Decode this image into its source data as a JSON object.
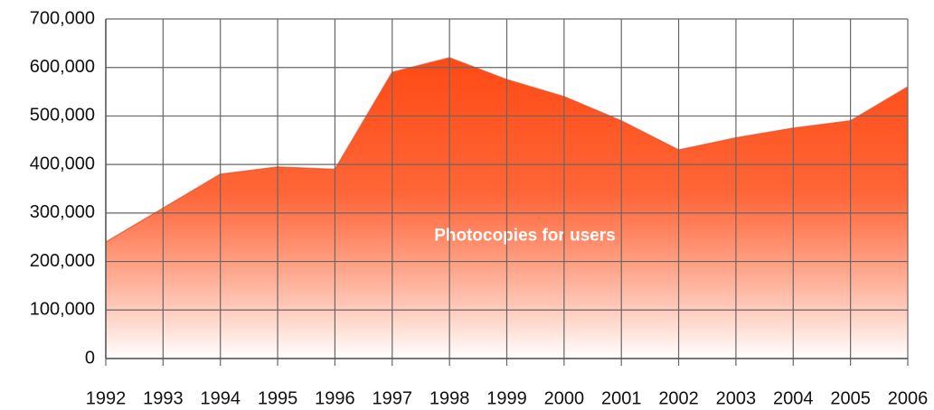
{
  "chart_data": {
    "type": "area",
    "categories": [
      "1992",
      "1993",
      "1994",
      "1995",
      "1996",
      "1997",
      "1998",
      "1999",
      "2000",
      "2001",
      "2002",
      "2003",
      "2004",
      "2005",
      "2006"
    ],
    "series": [
      {
        "name": "Photocopies for users",
        "color": "#ff4a14",
        "values": [
          240000,
          310000,
          380000,
          395000,
          390000,
          590000,
          620000,
          575000,
          540000,
          490000,
          430000,
          455000,
          475000,
          490000,
          560000
        ]
      }
    ],
    "ylim": [
      0,
      700000
    ],
    "yticks": [
      0,
      {
        "value": 100000,
        "label": "100,000"
      },
      {
        "value": 200000,
        "label": "200,000"
      },
      {
        "value": 300000,
        "label": "300,000"
      },
      {
        "value": 400000,
        "label": "400,000"
      },
      {
        "value": 500000,
        "label": "500,000"
      },
      {
        "value": 600000,
        "label": "600,000"
      },
      {
        "value": 700000,
        "label": "700,000"
      }
    ],
    "grid": true
  }
}
